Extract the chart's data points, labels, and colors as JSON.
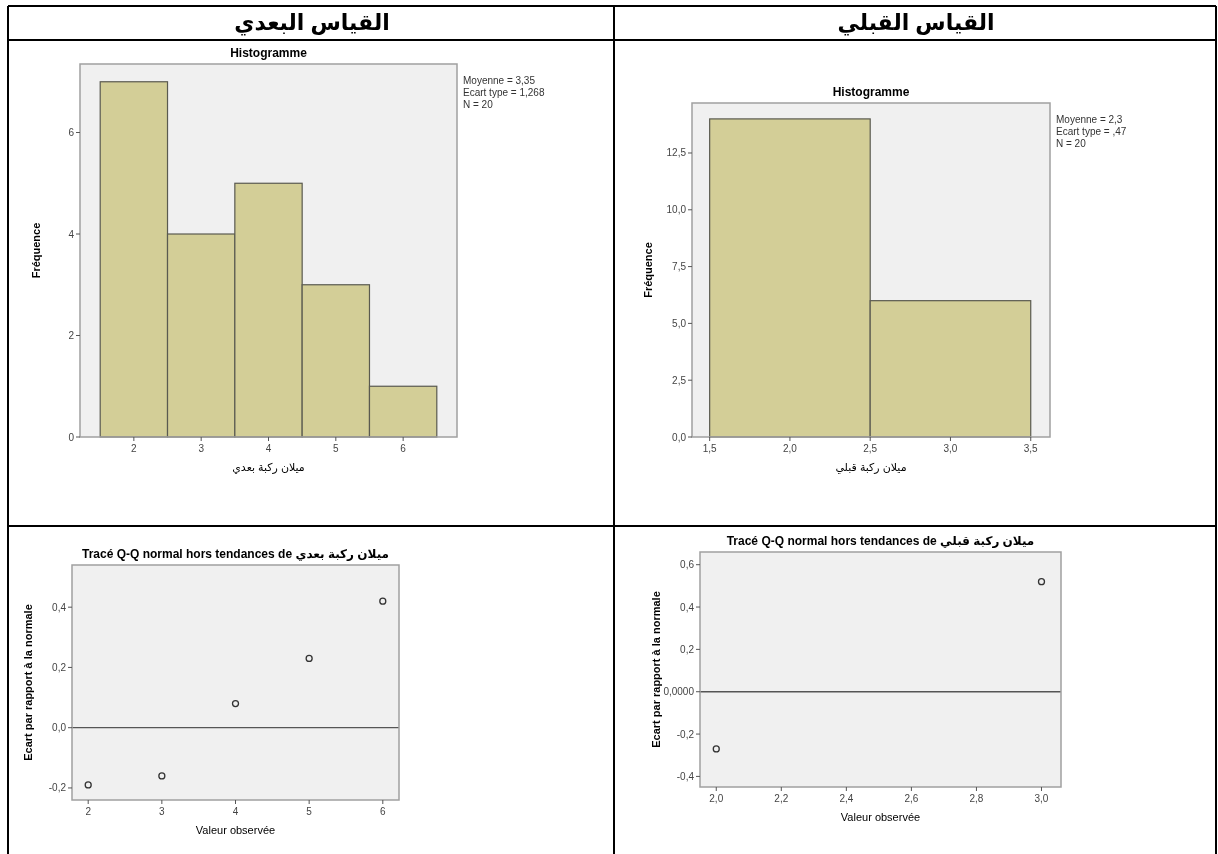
{
  "chart_data": [
    {
      "type": "histogram",
      "title": "Histogramme",
      "xlabel": "ميلان ركبة بعدي",
      "ylabel": "Fréquence",
      "annotations": [
        "القياس البعدي",
        "Moyenne = 3,35",
        "Ecart type = 1,268",
        "N = 20"
      ],
      "bins": [
        1.5,
        2.5,
        3.5,
        4.5,
        5.5,
        6.5
      ],
      "values": [
        7,
        4,
        5,
        3,
        1
      ],
      "color": "#d3ce97",
      "xlim": [
        1.2,
        6.8
      ],
      "ylim": [
        0,
        7.35
      ],
      "xticks": [
        2,
        3,
        4,
        5,
        6
      ],
      "yticks": [
        0,
        2,
        4,
        6
      ]
    },
    {
      "type": "histogram",
      "title": "Histogramme",
      "xlabel": "ميلان ركبة قبلي",
      "ylabel": "Fréquence",
      "annotations": [
        "القياس القبلي",
        "Moyenne = 2,3",
        "Ecart type = ,47",
        "N = 20"
      ],
      "bins": [
        1.5,
        2.5,
        3.5
      ],
      "values": [
        14,
        6
      ],
      "color": "#d3ce97",
      "xlim": [
        1.39,
        3.62
      ],
      "ylim": [
        0,
        14.7
      ],
      "xticks": [
        {
          "value": 1.5,
          "label": "1,5"
        },
        {
          "value": 2.0,
          "label": "2,0"
        },
        {
          "value": 2.5,
          "label": "2,5"
        },
        {
          "value": 3.0,
          "label": "3,0"
        },
        {
          "value": 3.5,
          "label": "3,5"
        }
      ],
      "yticks": [
        {
          "value": 0,
          "label": "0,0"
        },
        {
          "value": 2.5,
          "label": "2,5"
        },
        {
          "value": 5,
          "label": "5,0"
        },
        {
          "value": 7.5,
          "label": "7,5"
        },
        {
          "value": 10,
          "label": "10,0"
        },
        {
          "value": 12.5,
          "label": "12,5"
        }
      ]
    },
    {
      "type": "scatter",
      "title": "Tracé Q-Q normal hors tendances de ميلان ركبة بعدي",
      "xlabel": "Valeur observée",
      "ylabel": "Ecart par rapport à la normale",
      "x": [
        2,
        3,
        4,
        5,
        6
      ],
      "values": [
        -0.19,
        -0.16,
        0.08,
        0.23,
        0.42
      ],
      "color": "#333333",
      "marker": "circle",
      "xlim": [
        1.78,
        6.22
      ],
      "ylim": [
        -0.24,
        0.54
      ],
      "xticks": [
        2,
        3,
        4,
        5,
        6
      ],
      "yticks": [
        {
          "value": -0.2,
          "label": "-0,2"
        },
        {
          "value": 0,
          "label": "0,0"
        },
        {
          "value": 0.2,
          "label": "0,2"
        },
        {
          "value": 0.4,
          "label": "0,4"
        }
      ],
      "ref_lines": [
        {
          "axis": "y",
          "value": 0,
          "color": "#555555"
        }
      ]
    },
    {
      "type": "scatter",
      "title": "Tracé Q-Q normal hors tendances de ميلان ركبة قبلي",
      "xlabel": "Valeur observée",
      "ylabel": "Ecart par rapport à la normale",
      "x": [
        2,
        3
      ],
      "values": [
        -0.27,
        0.52
      ],
      "color": "#333333",
      "marker": "circle",
      "xlim": [
        1.95,
        3.06
      ],
      "ylim": [
        -0.45,
        0.66
      ],
      "xticks": [
        {
          "value": 2.0,
          "label": "2,0"
        },
        {
          "value": 2.2,
          "label": "2,2"
        },
        {
          "value": 2.4,
          "label": "2,4"
        },
        {
          "value": 2.6,
          "label": "2,6"
        },
        {
          "value": 2.8,
          "label": "2,8"
        },
        {
          "value": 3.0,
          "label": "3,0"
        }
      ],
      "yticks": [
        {
          "value": -0.4,
          "label": "-0,4"
        },
        {
          "value": -0.2,
          "label": "-0,2"
        },
        {
          "value": 0,
          "label": "0,0000"
        },
        {
          "value": 0.2,
          "label": "0,2"
        },
        {
          "value": 0.4,
          "label": "0,4"
        },
        {
          "value": 0.6,
          "label": "0,6"
        }
      ],
      "ref_lines": [
        {
          "axis": "y",
          "value": 0,
          "color": "#555555"
        }
      ]
    }
  ]
}
